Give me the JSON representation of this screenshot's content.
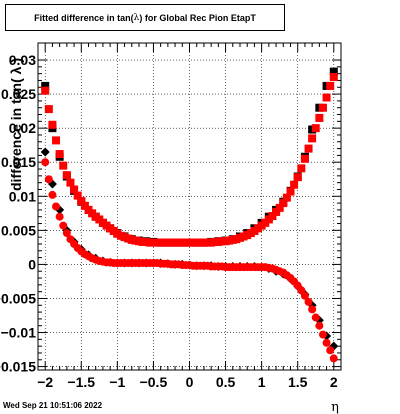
{
  "title_prefix": "Fitted difference in tan(",
  "title_symbol": " λ ",
  "title_suffix": ") for Global Rec Pion EtapT",
  "date_stamp": "Wed Sep 21 10:51:06 2022",
  "chart_data": {
    "type": "scatter",
    "xlabel": "η",
    "ylabel": "difference in tan( λ )",
    "xlim": [
      -2.1,
      2.1
    ],
    "ylim": [
      -0.0155,
      0.0325
    ],
    "x_ticks": [
      -2,
      -1.5,
      -1,
      -0.5,
      0,
      0.5,
      1,
      1.5,
      2
    ],
    "x_tick_labels": [
      "−2",
      "−1.5",
      "−1",
      "−0.5",
      "0",
      "0.5",
      "1",
      "1.5",
      "2"
    ],
    "y_ticks": [
      -0.015,
      -0.01,
      -0.005,
      0,
      0.005,
      0.01,
      0.015,
      0.02,
      0.025,
      0.03
    ],
    "y_tick_labels": [
      "−0.015",
      "−0.01",
      "−0.005",
      "0",
      "0.005",
      "0.01",
      "0.015",
      "0.02",
      "0.025",
      "0.03"
    ],
    "grid": true,
    "colors": {
      "black": "#000000",
      "red": "#ff0000"
    },
    "series": [
      {
        "marker": "square",
        "color": "#000000",
        "x": [
          -2.0,
          -1.9,
          -1.8,
          -1.7,
          -1.6,
          -1.5,
          -1.4,
          -1.3,
          -1.2,
          -1.1,
          -1.0,
          -0.9,
          -0.8,
          -0.7,
          -0.6,
          -0.5,
          -0.4,
          -0.3,
          -0.2,
          -0.1,
          0.0,
          0.1,
          0.2,
          0.3,
          0.4,
          0.5,
          0.6,
          0.7,
          0.8,
          0.9,
          1.0,
          1.1,
          1.2,
          1.3,
          1.4,
          1.5,
          1.6,
          1.7,
          1.8,
          1.9,
          2.0
        ],
        "y": [
          0.0262,
          0.02,
          0.0158,
          0.0129,
          0.0108,
          0.0092,
          0.008,
          0.007,
          0.0061,
          0.0053,
          0.0046,
          0.0041,
          0.0037,
          0.0035,
          0.0034,
          0.0033,
          0.0032,
          0.0032,
          0.0032,
          0.0032,
          0.0032,
          0.0032,
          0.0032,
          0.0033,
          0.0034,
          0.0035,
          0.0037,
          0.0041,
          0.0046,
          0.0053,
          0.0061,
          0.007,
          0.008,
          0.0092,
          0.0108,
          0.0129,
          0.0158,
          0.0198,
          0.023,
          0.0262,
          0.0283
        ]
      },
      {
        "marker": "square",
        "color": "#ff0000",
        "x": [
          -2.0,
          -1.95,
          -1.9,
          -1.85,
          -1.8,
          -1.75,
          -1.7,
          -1.65,
          -1.6,
          -1.55,
          -1.5,
          -1.45,
          -1.4,
          -1.35,
          -1.3,
          -1.25,
          -1.2,
          -1.15,
          -1.1,
          -1.05,
          -1.0,
          -0.95,
          -0.9,
          -0.85,
          -0.8,
          -0.75,
          -0.7,
          -0.65,
          -0.6,
          -0.55,
          -0.5,
          -0.45,
          -0.4,
          -0.35,
          -0.3,
          -0.25,
          -0.2,
          -0.15,
          -0.1,
          -0.05,
          0.0,
          0.05,
          0.1,
          0.15,
          0.2,
          0.25,
          0.3,
          0.35,
          0.4,
          0.45,
          0.5,
          0.55,
          0.6,
          0.65,
          0.7,
          0.75,
          0.8,
          0.85,
          0.9,
          0.95,
          1.0,
          1.05,
          1.1,
          1.15,
          1.2,
          1.25,
          1.3,
          1.35,
          1.4,
          1.45,
          1.5,
          1.55,
          1.6,
          1.65,
          1.7,
          1.75,
          1.8,
          1.85,
          1.9,
          1.95,
          2.0
        ],
        "y": [
          0.0255,
          0.0228,
          0.0205,
          0.0182,
          0.0162,
          0.0145,
          0.0131,
          0.012,
          0.011,
          0.0101,
          0.0093,
          0.0086,
          0.008,
          0.0075,
          0.007,
          0.0066,
          0.0061,
          0.0057,
          0.0053,
          0.0049,
          0.0045,
          0.0042,
          0.004,
          0.0038,
          0.0036,
          0.0035,
          0.0034,
          0.0033,
          0.0033,
          0.0032,
          0.0032,
          0.0032,
          0.0032,
          0.0032,
          0.0032,
          0.0032,
          0.0032,
          0.0032,
          0.0032,
          0.0032,
          0.0032,
          0.0032,
          0.0032,
          0.0032,
          0.0032,
          0.0032,
          0.0032,
          0.0033,
          0.0033,
          0.0034,
          0.0034,
          0.0035,
          0.0036,
          0.0037,
          0.0039,
          0.0041,
          0.0043,
          0.0046,
          0.0049,
          0.0053,
          0.0057,
          0.0061,
          0.0066,
          0.0071,
          0.0077,
          0.0083,
          0.009,
          0.0098,
          0.0107,
          0.0117,
          0.0128,
          0.0141,
          0.0155,
          0.017,
          0.0185,
          0.02,
          0.0215,
          0.023,
          0.0245,
          0.0262,
          0.0275
        ]
      },
      {
        "marker": "diamond",
        "color": "#000000",
        "x": [
          -2.0,
          -1.9,
          -1.8,
          -1.7,
          -1.6,
          -1.5,
          -1.4,
          -1.3,
          -1.2,
          -1.1,
          -1.0,
          -0.9,
          -0.8,
          -0.7,
          -0.6,
          -0.5,
          -0.4,
          -0.3,
          -0.2,
          -0.1,
          0.0,
          0.1,
          0.2,
          0.3,
          0.4,
          0.5,
          0.6,
          0.7,
          0.8,
          0.9,
          1.0,
          1.1,
          1.2,
          1.3,
          1.4,
          1.5,
          1.6,
          1.7,
          1.8,
          1.9,
          2.0
        ],
        "y": [
          0.0165,
          0.0118,
          0.008,
          0.005,
          0.0033,
          0.0022,
          0.0014,
          0.0009,
          0.0005,
          0.0003,
          0.0002,
          0.0002,
          0.0002,
          0.0002,
          0.0002,
          0.0002,
          0.0002,
          0.0001,
          0.0,
          0.0,
          -0.0001,
          -0.0002,
          -0.0002,
          -0.0002,
          -0.0003,
          -0.0003,
          -0.0003,
          -0.0003,
          -0.0003,
          -0.0003,
          -0.0004,
          -0.0006,
          -0.001,
          -0.0014,
          -0.0021,
          -0.0032,
          -0.0044,
          -0.006,
          -0.0082,
          -0.0105,
          -0.012
        ]
      },
      {
        "marker": "circle",
        "color": "#ff0000",
        "x": [
          -2.0,
          -1.95,
          -1.9,
          -1.85,
          -1.8,
          -1.75,
          -1.7,
          -1.65,
          -1.6,
          -1.55,
          -1.5,
          -1.45,
          -1.4,
          -1.35,
          -1.3,
          -1.25,
          -1.2,
          -1.15,
          -1.1,
          -1.05,
          -1.0,
          -0.95,
          -0.9,
          -0.85,
          -0.8,
          -0.75,
          -0.7,
          -0.65,
          -0.6,
          -0.55,
          -0.5,
          -0.45,
          -0.4,
          -0.35,
          -0.3,
          -0.25,
          -0.2,
          -0.15,
          -0.1,
          -0.05,
          0.0,
          0.05,
          0.1,
          0.15,
          0.2,
          0.25,
          0.3,
          0.35,
          0.4,
          0.45,
          0.5,
          0.55,
          0.6,
          0.65,
          0.7,
          0.75,
          0.8,
          0.85,
          0.9,
          0.95,
          1.0,
          1.05,
          1.1,
          1.15,
          1.2,
          1.25,
          1.3,
          1.35,
          1.4,
          1.45,
          1.5,
          1.55,
          1.6,
          1.65,
          1.7,
          1.75,
          1.8,
          1.85,
          1.9,
          1.95,
          2.0
        ],
        "y": [
          0.015,
          0.0125,
          0.0102,
          0.0085,
          0.007,
          0.0057,
          0.0046,
          0.0037,
          0.003,
          0.0024,
          0.0019,
          0.0015,
          0.0012,
          0.0009,
          0.0007,
          0.0005,
          0.0004,
          0.0003,
          0.0003,
          0.0002,
          0.0002,
          0.0002,
          0.0002,
          0.0002,
          0.0002,
          0.0002,
          0.0002,
          0.0002,
          0.0002,
          0.0002,
          0.0002,
          0.0002,
          0.0001,
          0.0001,
          0.0001,
          0.0,
          0.0,
          0.0,
          -0.0001,
          -0.0001,
          -0.0001,
          -0.0002,
          -0.0002,
          -0.0002,
          -0.0002,
          -0.0002,
          -0.0003,
          -0.0003,
          -0.0003,
          -0.0003,
          -0.0004,
          -0.0004,
          -0.0004,
          -0.0004,
          -0.0004,
          -0.0004,
          -0.0004,
          -0.0004,
          -0.0004,
          -0.0004,
          -0.0004,
          -0.0004,
          -0.0005,
          -0.0006,
          -0.0008,
          -0.001,
          -0.0012,
          -0.0016,
          -0.002,
          -0.0025,
          -0.0031,
          -0.0038,
          -0.0046,
          -0.0055,
          -0.0066,
          -0.0078,
          -0.009,
          -0.0103,
          -0.0115,
          -0.0126,
          -0.0138
        ]
      }
    ]
  }
}
